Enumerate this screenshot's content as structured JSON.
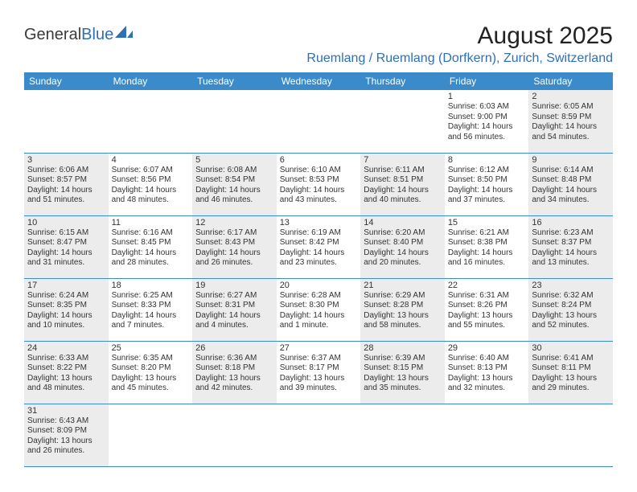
{
  "logo": {
    "part1": "General",
    "part2": "Blue"
  },
  "title": "August 2025",
  "location": "Ruemlang / Ruemlang (Dorfkern), Zurich, Switzerland",
  "colors": {
    "header_bg": "#3b8bca",
    "header_text": "#ffffff",
    "accent": "#2f6fb3",
    "shade": "#ececec",
    "rule": "#3b8bca"
  },
  "daynames": [
    "Sunday",
    "Monday",
    "Tuesday",
    "Wednesday",
    "Thursday",
    "Friday",
    "Saturday"
  ],
  "weeks": [
    [
      null,
      null,
      null,
      null,
      null,
      {
        "n": "1",
        "sr": "Sunrise: 6:03 AM",
        "ss": "Sunset: 9:00 PM",
        "d1": "Daylight: 14 hours",
        "d2": "and 56 minutes."
      },
      {
        "n": "2",
        "sr": "Sunrise: 6:05 AM",
        "ss": "Sunset: 8:59 PM",
        "d1": "Daylight: 14 hours",
        "d2": "and 54 minutes."
      }
    ],
    [
      {
        "n": "3",
        "sr": "Sunrise: 6:06 AM",
        "ss": "Sunset: 8:57 PM",
        "d1": "Daylight: 14 hours",
        "d2": "and 51 minutes."
      },
      {
        "n": "4",
        "sr": "Sunrise: 6:07 AM",
        "ss": "Sunset: 8:56 PM",
        "d1": "Daylight: 14 hours",
        "d2": "and 48 minutes."
      },
      {
        "n": "5",
        "sr": "Sunrise: 6:08 AM",
        "ss": "Sunset: 8:54 PM",
        "d1": "Daylight: 14 hours",
        "d2": "and 46 minutes."
      },
      {
        "n": "6",
        "sr": "Sunrise: 6:10 AM",
        "ss": "Sunset: 8:53 PM",
        "d1": "Daylight: 14 hours",
        "d2": "and 43 minutes."
      },
      {
        "n": "7",
        "sr": "Sunrise: 6:11 AM",
        "ss": "Sunset: 8:51 PM",
        "d1": "Daylight: 14 hours",
        "d2": "and 40 minutes."
      },
      {
        "n": "8",
        "sr": "Sunrise: 6:12 AM",
        "ss": "Sunset: 8:50 PM",
        "d1": "Daylight: 14 hours",
        "d2": "and 37 minutes."
      },
      {
        "n": "9",
        "sr": "Sunrise: 6:14 AM",
        "ss": "Sunset: 8:48 PM",
        "d1": "Daylight: 14 hours",
        "d2": "and 34 minutes."
      }
    ],
    [
      {
        "n": "10",
        "sr": "Sunrise: 6:15 AM",
        "ss": "Sunset: 8:47 PM",
        "d1": "Daylight: 14 hours",
        "d2": "and 31 minutes."
      },
      {
        "n": "11",
        "sr": "Sunrise: 6:16 AM",
        "ss": "Sunset: 8:45 PM",
        "d1": "Daylight: 14 hours",
        "d2": "and 28 minutes."
      },
      {
        "n": "12",
        "sr": "Sunrise: 6:17 AM",
        "ss": "Sunset: 8:43 PM",
        "d1": "Daylight: 14 hours",
        "d2": "and 26 minutes."
      },
      {
        "n": "13",
        "sr": "Sunrise: 6:19 AM",
        "ss": "Sunset: 8:42 PM",
        "d1": "Daylight: 14 hours",
        "d2": "and 23 minutes."
      },
      {
        "n": "14",
        "sr": "Sunrise: 6:20 AM",
        "ss": "Sunset: 8:40 PM",
        "d1": "Daylight: 14 hours",
        "d2": "and 20 minutes."
      },
      {
        "n": "15",
        "sr": "Sunrise: 6:21 AM",
        "ss": "Sunset: 8:38 PM",
        "d1": "Daylight: 14 hours",
        "d2": "and 16 minutes."
      },
      {
        "n": "16",
        "sr": "Sunrise: 6:23 AM",
        "ss": "Sunset: 8:37 PM",
        "d1": "Daylight: 14 hours",
        "d2": "and 13 minutes."
      }
    ],
    [
      {
        "n": "17",
        "sr": "Sunrise: 6:24 AM",
        "ss": "Sunset: 8:35 PM",
        "d1": "Daylight: 14 hours",
        "d2": "and 10 minutes."
      },
      {
        "n": "18",
        "sr": "Sunrise: 6:25 AM",
        "ss": "Sunset: 8:33 PM",
        "d1": "Daylight: 14 hours",
        "d2": "and 7 minutes."
      },
      {
        "n": "19",
        "sr": "Sunrise: 6:27 AM",
        "ss": "Sunset: 8:31 PM",
        "d1": "Daylight: 14 hours",
        "d2": "and 4 minutes."
      },
      {
        "n": "20",
        "sr": "Sunrise: 6:28 AM",
        "ss": "Sunset: 8:30 PM",
        "d1": "Daylight: 14 hours",
        "d2": "and 1 minute."
      },
      {
        "n": "21",
        "sr": "Sunrise: 6:29 AM",
        "ss": "Sunset: 8:28 PM",
        "d1": "Daylight: 13 hours",
        "d2": "and 58 minutes."
      },
      {
        "n": "22",
        "sr": "Sunrise: 6:31 AM",
        "ss": "Sunset: 8:26 PM",
        "d1": "Daylight: 13 hours",
        "d2": "and 55 minutes."
      },
      {
        "n": "23",
        "sr": "Sunrise: 6:32 AM",
        "ss": "Sunset: 8:24 PM",
        "d1": "Daylight: 13 hours",
        "d2": "and 52 minutes."
      }
    ],
    [
      {
        "n": "24",
        "sr": "Sunrise: 6:33 AM",
        "ss": "Sunset: 8:22 PM",
        "d1": "Daylight: 13 hours",
        "d2": "and 48 minutes."
      },
      {
        "n": "25",
        "sr": "Sunrise: 6:35 AM",
        "ss": "Sunset: 8:20 PM",
        "d1": "Daylight: 13 hours",
        "d2": "and 45 minutes."
      },
      {
        "n": "26",
        "sr": "Sunrise: 6:36 AM",
        "ss": "Sunset: 8:18 PM",
        "d1": "Daylight: 13 hours",
        "d2": "and 42 minutes."
      },
      {
        "n": "27",
        "sr": "Sunrise: 6:37 AM",
        "ss": "Sunset: 8:17 PM",
        "d1": "Daylight: 13 hours",
        "d2": "and 39 minutes."
      },
      {
        "n": "28",
        "sr": "Sunrise: 6:39 AM",
        "ss": "Sunset: 8:15 PM",
        "d1": "Daylight: 13 hours",
        "d2": "and 35 minutes."
      },
      {
        "n": "29",
        "sr": "Sunrise: 6:40 AM",
        "ss": "Sunset: 8:13 PM",
        "d1": "Daylight: 13 hours",
        "d2": "and 32 minutes."
      },
      {
        "n": "30",
        "sr": "Sunrise: 6:41 AM",
        "ss": "Sunset: 8:11 PM",
        "d1": "Daylight: 13 hours",
        "d2": "and 29 minutes."
      }
    ],
    [
      {
        "n": "31",
        "sr": "Sunrise: 6:43 AM",
        "ss": "Sunset: 8:09 PM",
        "d1": "Daylight: 13 hours",
        "d2": "and 26 minutes."
      },
      null,
      null,
      null,
      null,
      null,
      null
    ]
  ]
}
